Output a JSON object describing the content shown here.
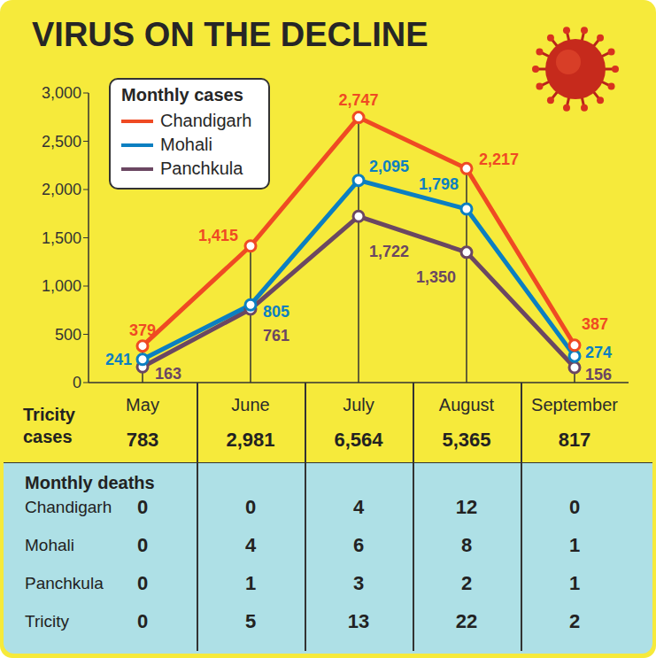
{
  "chart_data": {
    "type": "line",
    "title": "VIRUS ON THE DECLINE",
    "legend_title": "Monthly cases",
    "categories": [
      "May",
      "June",
      "July",
      "August",
      "September"
    ],
    "series": [
      {
        "name": "Chandigarh",
        "color": "#ef4a23",
        "marker": "circle",
        "values": [
          379,
          1415,
          2747,
          2217,
          387
        ],
        "value_labels": [
          "379",
          "1,415",
          "2,747",
          "2,217",
          "387"
        ]
      },
      {
        "name": "Mohali",
        "color": "#0b7fc1",
        "marker": "circle",
        "values": [
          241,
          805,
          2095,
          1798,
          274
        ],
        "value_labels": [
          "241",
          "805",
          "2,095",
          "1,798",
          "274"
        ]
      },
      {
        "name": "Panchkula",
        "color": "#6b4762",
        "marker": "circle",
        "values": [
          163,
          761,
          1722,
          1350,
          156
        ],
        "value_labels": [
          "163",
          "761",
          "1,722",
          "1,350",
          "156"
        ]
      }
    ],
    "ylim": [
      0,
      3000
    ],
    "yticks": [
      0,
      500,
      {
        "value": 1000,
        "label": "1,000"
      },
      {
        "value": 1500,
        "label": "1,500"
      },
      {
        "value": 2000,
        "label": "2,000"
      },
      {
        "value": 2500,
        "label": "2,500"
      },
      {
        "value": 3000,
        "label": "3,000"
      }
    ],
    "legend": "upper left",
    "data_labels": true
  },
  "table": {
    "tricity_cases": {
      "label": "Tricity cases",
      "values": [
        "783",
        "2,981",
        "6,564",
        "5,365",
        "817"
      ]
    },
    "monthly_deaths": {
      "title": "Monthly deaths",
      "rows": [
        {
          "label": "Chandigarh",
          "values": [
            0,
            0,
            4,
            12,
            0
          ]
        },
        {
          "label": "Mohali",
          "values": [
            0,
            4,
            6,
            8,
            1
          ]
        },
        {
          "label": "Panchkula",
          "values": [
            0,
            1,
            3,
            2,
            1
          ]
        },
        {
          "label": "Tricity",
          "values": [
            0,
            5,
            13,
            22,
            2
          ]
        }
      ]
    }
  }
}
